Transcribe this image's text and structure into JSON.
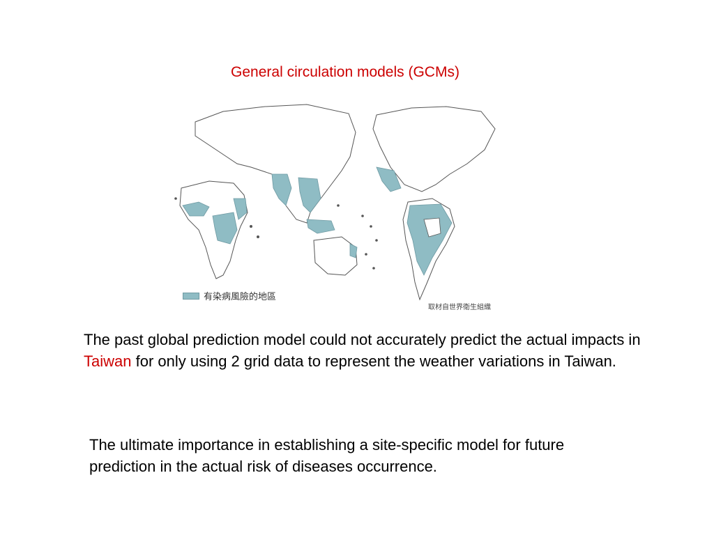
{
  "slide": {
    "title": "General circulation models (GCMs)",
    "map": {
      "legend_label": "有染病風險的地區",
      "credit": "取材自世界衛生組織",
      "risk_color": "#8fbcc4"
    },
    "paragraph1": {
      "before": "The past global prediction model could not accurately predict the actual impacts in ",
      "highlight": "Taiwan",
      "after": " for only using 2 grid data to represent the weather variations in Taiwan."
    },
    "paragraph2": "The ultimate importance in establishing a site-specific model for future prediction in the actual risk of diseases occurrence."
  }
}
